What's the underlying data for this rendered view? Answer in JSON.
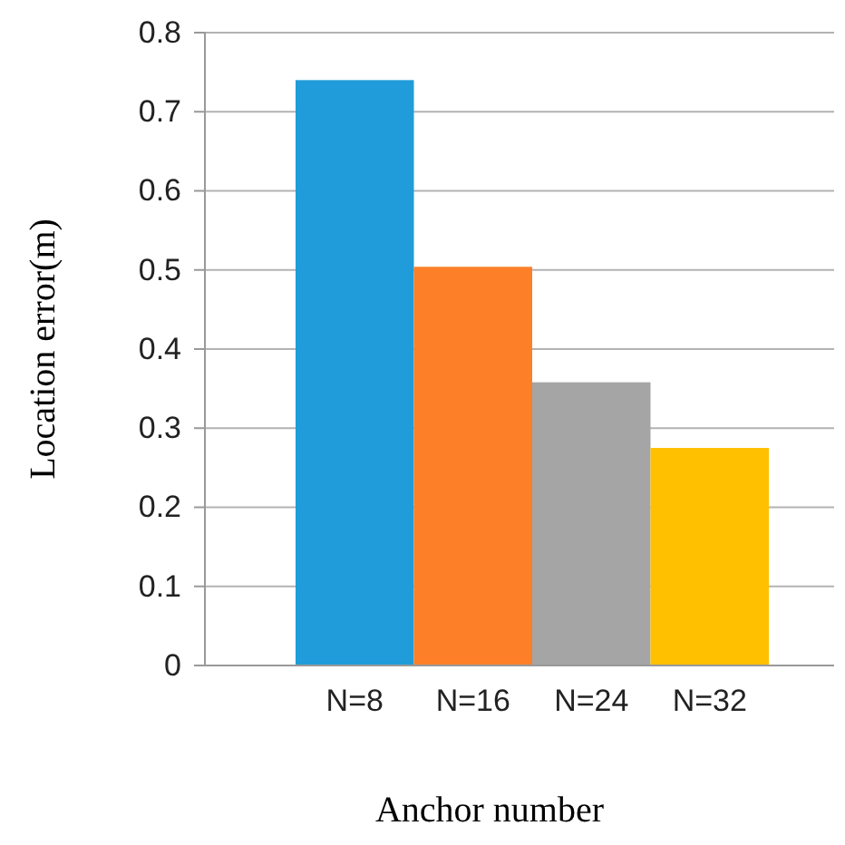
{
  "chart_data": {
    "type": "bar",
    "xlabel": "Anchor number",
    "ylabel": "Location error(m)",
    "categories": [
      "N=8",
      "N=16",
      "N=24",
      "N=32"
    ],
    "values": [
      0.74,
      0.504,
      0.358,
      0.275
    ],
    "colors": [
      "#1f9cd9",
      "#fd7f27",
      "#a5a5a5",
      "#ffc000"
    ],
    "ylim": [
      0,
      0.8
    ],
    "yticks": [
      0,
      0.1,
      0.2,
      0.3,
      0.4,
      0.5,
      0.6,
      0.7,
      0.8
    ],
    "grid": "y"
  }
}
